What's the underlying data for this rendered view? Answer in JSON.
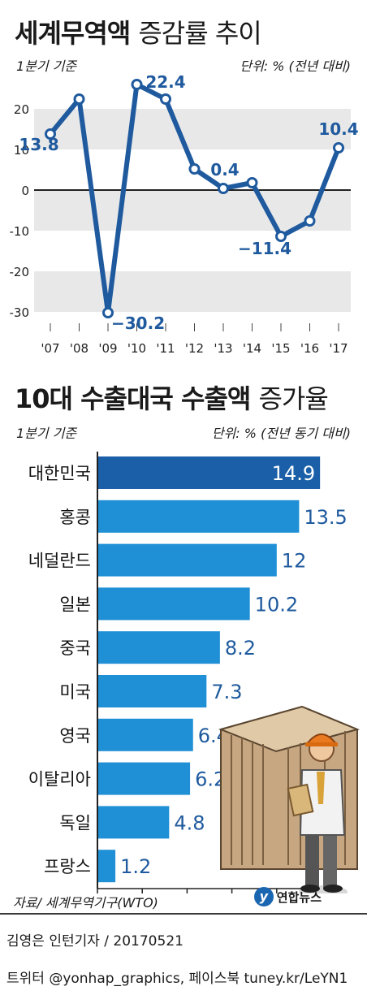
{
  "header": {
    "line_title_bold": "세계무역액",
    "line_title_light": "증감률 추이",
    "line_basis": "1분기 기준",
    "line_unit": "단위: % (전년 대비)",
    "bar_title_bold": "10대 수출대국 수출액",
    "bar_title_light": "증가율",
    "bar_basis": "1분기 기준",
    "bar_unit": "단위: % (전년 동기 대비)"
  },
  "footer": {
    "source": "자료/ 세계무역기구(WTO)",
    "logo_text": "연합뉴스",
    "credit": "김영은 인턴기자 / 20170521",
    "social": "트위터 @yonhap_graphics, 페이스북 tuney.kr/LeYN1"
  },
  "colors": {
    "line": "#1f5a9e",
    "bar": "#1f8fd6",
    "bar_highlight": "#1a5fa8",
    "band": "#e8e8e8"
  },
  "chart_data": [
    {
      "type": "line",
      "title": "세계무역액 증감률 추이",
      "x": [
        "'07",
        "'08",
        "'09",
        "'10",
        "'11",
        "'12",
        "'13",
        "'14",
        "'15",
        "'16",
        "'17"
      ],
      "series": [
        {
          "values": [
            13.8,
            22.4,
            -30.2,
            26.0,
            22.4,
            5.2,
            0.4,
            1.8,
            -11.4,
            -7.6,
            10.4
          ]
        }
      ],
      "data_labels": [
        {
          "index": 0,
          "text": "13.8"
        },
        {
          "index": 2,
          "text": "−30.2"
        },
        {
          "index": 4,
          "text": "22.4"
        },
        {
          "index": 6,
          "text": "0.4"
        },
        {
          "index": 8,
          "text": "−11.4"
        },
        {
          "index": 10,
          "text": "10.4"
        }
      ],
      "yticks": [
        20,
        10,
        0,
        -10,
        -20,
        -30
      ],
      "ytick_labels": [
        "20",
        "10",
        "0",
        "-10",
        "-20",
        "-30"
      ],
      "ylim": [
        -30,
        27
      ],
      "grid": "alternating bands"
    },
    {
      "type": "bar",
      "orientation": "horizontal",
      "title": "10대 수출대국 수출액 증가율",
      "categories": [
        "대한민국",
        "홍콩",
        "네덜란드",
        "일본",
        "중국",
        "미국",
        "영국",
        "이탈리아",
        "독일",
        "프랑스"
      ],
      "values": [
        14.9,
        13.5,
        12,
        10.2,
        8.2,
        7.3,
        6.4,
        6.2,
        4.8,
        1.2
      ],
      "value_labels": [
        "14.9",
        "13.5",
        "12",
        "10.2",
        "8.2",
        "7.3",
        "6.4",
        "6.2",
        "4.8",
        "1.2"
      ],
      "highlight": "대한민국",
      "xticks": [
        0,
        3,
        6,
        9,
        12,
        15
      ],
      "xlim": [
        0,
        15
      ]
    }
  ]
}
